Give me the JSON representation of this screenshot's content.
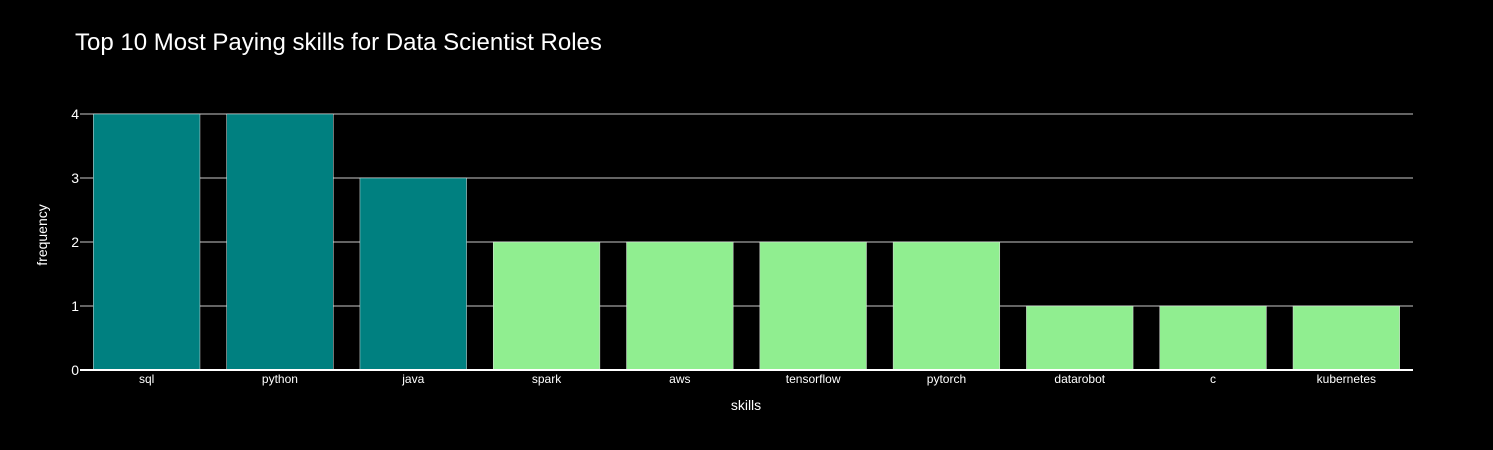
{
  "chart_data": {
    "type": "bar",
    "title": "Top 10 Most Paying skills for Data Scientist Roles",
    "xlabel": "skills",
    "ylabel": "frequency",
    "categories": [
      "sql",
      "python",
      "java",
      "spark",
      "aws",
      "tensorflow",
      "pytorch",
      "datarobot",
      "c",
      "kubernetes"
    ],
    "values": [
      4,
      4,
      3,
      2,
      2,
      2,
      2,
      1,
      1,
      1
    ],
    "bar_colors": [
      "#008080",
      "#008080",
      "#008080",
      "#90ee90",
      "#90ee90",
      "#90ee90",
      "#90ee90",
      "#90ee90",
      "#90ee90",
      "#90ee90"
    ],
    "ylim": [
      0,
      4
    ],
    "yticks": [
      0,
      1,
      2,
      3,
      4
    ],
    "grid": true,
    "background": "#000000",
    "gridline_color": "#c8c8c8"
  }
}
